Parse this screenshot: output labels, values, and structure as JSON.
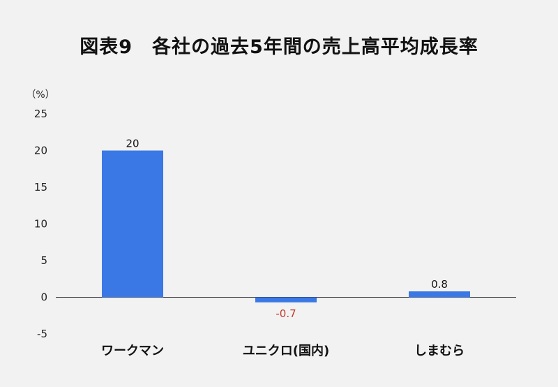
{
  "chart_data": {
    "type": "bar",
    "title": "図表9　各社の過去5年間の売上高平均成長率",
    "unit_label": "（%）",
    "categories": [
      "ワークマン",
      "ユニクロ(国内)",
      "しまむら"
    ],
    "values": [
      20,
      -0.7,
      0.8
    ],
    "data_labels": [
      "20",
      "-0.7",
      "0.8"
    ],
    "ylim": [
      -5,
      25
    ],
    "yticks": [
      "25",
      "20",
      "15",
      "10",
      "5",
      "0",
      "-5"
    ],
    "grid": false,
    "bar_color": "#3a78e6",
    "positive_label_color": "#111111",
    "negative_label_color": "#c0392b"
  }
}
